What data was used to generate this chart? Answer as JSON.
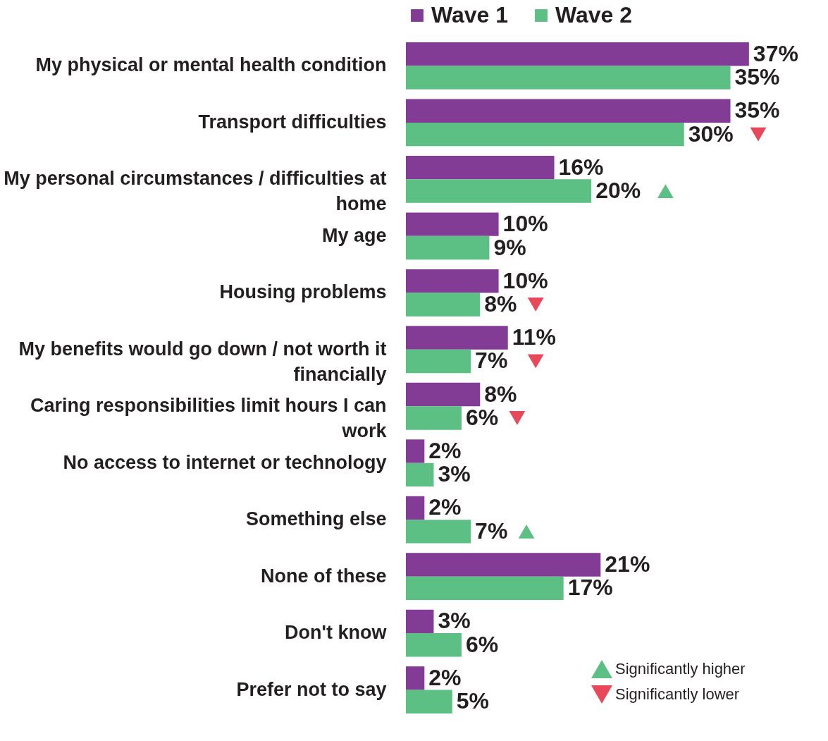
{
  "chart_data": {
    "type": "bar",
    "orientation": "horizontal",
    "legend": "top",
    "categories": [
      "My physical or mental health condition",
      "Transport difficulties",
      "My personal circumstances / difficulties at home",
      "My age",
      "Housing problems",
      "My benefits would go down / not worth it financially",
      "Caring responsibilities limit hours I can work",
      "No access to internet or technology",
      "Something else",
      "None of these",
      "Don't know",
      "Prefer not to say"
    ],
    "series": [
      {
        "name": "Wave 1",
        "color": "#833c95",
        "values": [
          37,
          35,
          16,
          10,
          10,
          11,
          8,
          2,
          2,
          21,
          3,
          2
        ],
        "value_labels": [
          "37%",
          "35%",
          "16%",
          "10%",
          "10%",
          "11%",
          "8%",
          "2%",
          "2%",
          "21%",
          "3%",
          "2%"
        ]
      },
      {
        "name": "Wave 2",
        "color": "#5cbf84",
        "values": [
          35,
          30,
          20,
          9,
          8,
          7,
          6,
          3,
          7,
          17,
          6,
          5
        ],
        "value_labels": [
          "35%",
          "30%",
          "20%",
          "9%",
          "8%",
          "7%",
          "6%",
          "3%",
          "7%",
          "17%",
          "6%",
          "5%"
        ]
      },
      {
        "name": "Significantly higher",
        "type": "scatter",
        "marker": "triangle",
        "color": "#5cbf84",
        "values": [
          null,
          null,
          28,
          null,
          null,
          null,
          null,
          null,
          13,
          null,
          null,
          null
        ]
      },
      {
        "name": "Significantly lower",
        "type": "scatter",
        "marker": "triangle-down",
        "color": "#e8485a",
        "values": [
          null,
          38,
          null,
          null,
          14,
          14,
          12,
          null,
          null,
          null,
          null,
          null
        ]
      }
    ]
  }
}
